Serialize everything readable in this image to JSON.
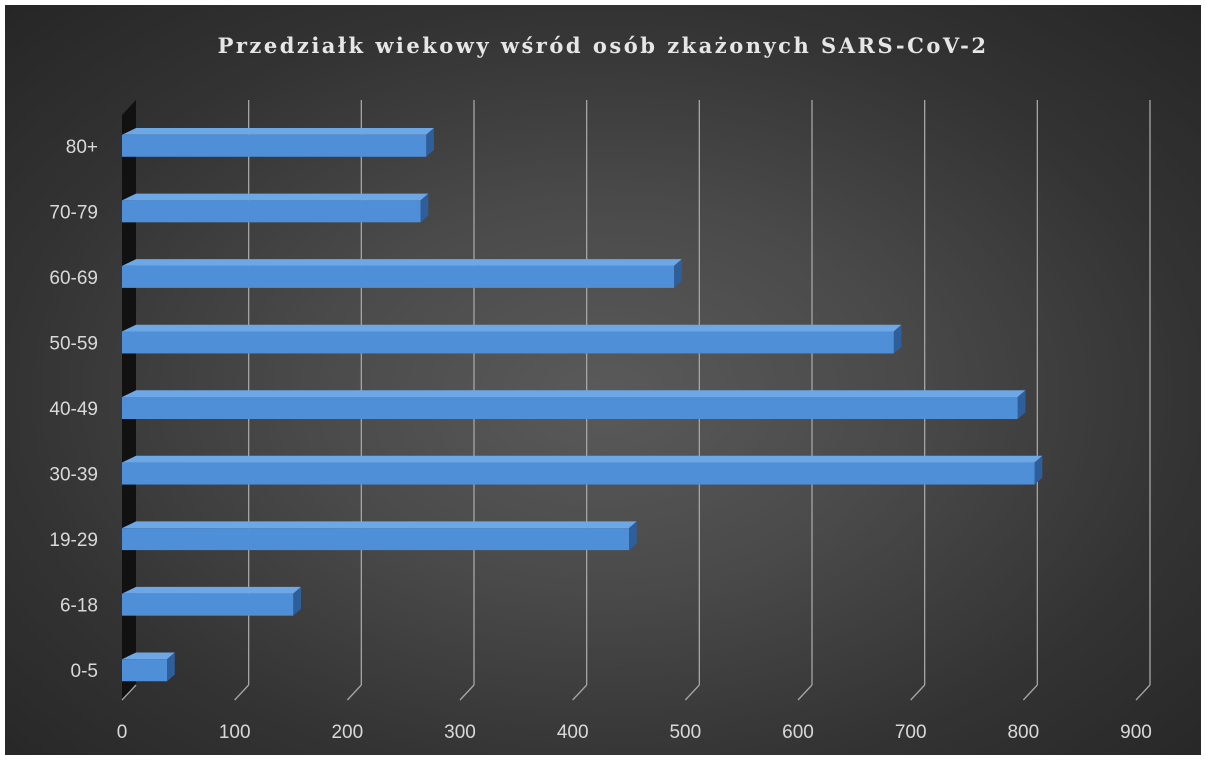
{
  "chart_data": {
    "type": "bar",
    "orientation": "horizontal",
    "title": "Przedziałk wiekowy wśród osób zkażonych SARS-CoV-2",
    "categories": [
      "0-5",
      "6-18",
      "19-29",
      "30-39",
      "40-49",
      "50-59",
      "60-69",
      "70-79",
      "80+"
    ],
    "values": [
      40,
      152,
      450,
      810,
      795,
      685,
      490,
      265,
      270
    ],
    "xlim": [
      0,
      900
    ],
    "xticks": [
      "0",
      "100",
      "200",
      "300",
      "400",
      "500",
      "600",
      "700",
      "800",
      "900"
    ],
    "grid": true,
    "legend": "none",
    "bar_color": "#4f8fd8",
    "bar_top_color": "#6ea7e6",
    "bar_side_color": "#2f5f9a",
    "background_color": "#404040"
  }
}
